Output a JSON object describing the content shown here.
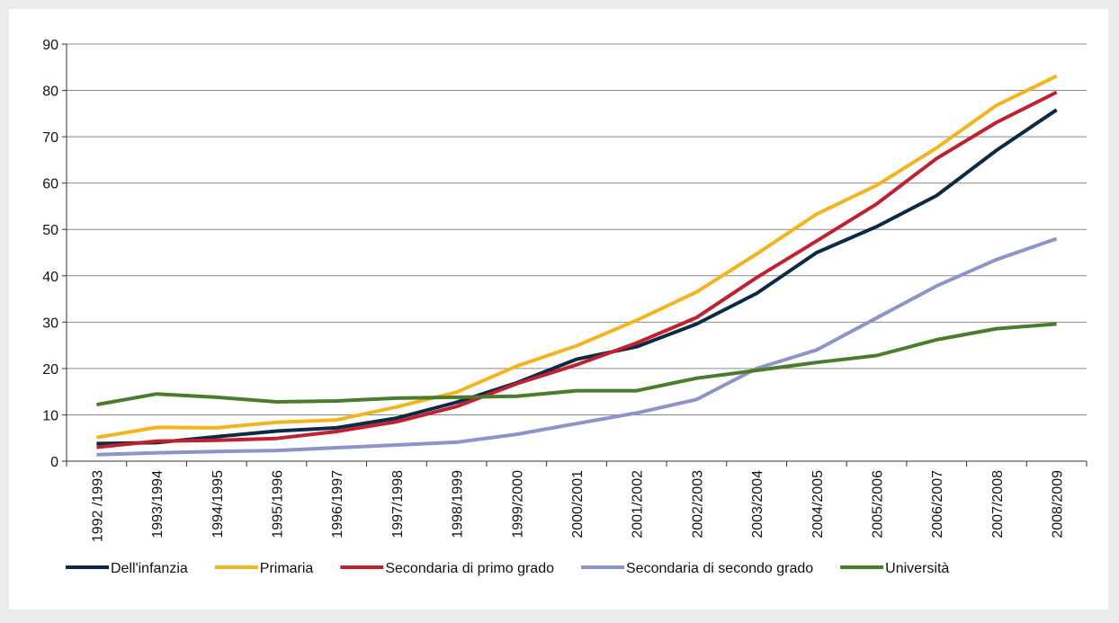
{
  "chart_data": {
    "type": "line",
    "title": "",
    "xlabel": "",
    "ylabel": "",
    "ylim": [
      0,
      90
    ],
    "y_ticks": [
      0,
      10,
      20,
      30,
      40,
      50,
      60,
      70,
      80,
      90
    ],
    "grid": "horizontal",
    "legend_position": "bottom",
    "categories": [
      "1992 /1993",
      "1993/1994",
      "1994/1995",
      "1995/1996",
      "1996/1997",
      "1997/1998",
      "1998/1999",
      "1999/2000",
      "2000/2001",
      "2001/2002",
      "2002/2003",
      "2003/2004",
      "2004/2005",
      "2005/2006",
      "2006/2007",
      "2007/2008",
      "2008/2009"
    ],
    "series": [
      {
        "name": "Dell'infanzia",
        "color": "#0d2a45",
        "values": [
          3.8,
          4.0,
          5.3,
          6.5,
          7.2,
          9.3,
          12.7,
          16.9,
          22.0,
          24.7,
          29.6,
          36.2,
          45.0,
          50.6,
          57.3,
          67.1,
          75.8
        ]
      },
      {
        "name": "Primaria",
        "color": "#f2b421",
        "values": [
          5.1,
          7.3,
          7.2,
          8.4,
          8.9,
          11.7,
          14.9,
          20.5,
          24.9,
          30.4,
          36.5,
          44.7,
          53.3,
          59.5,
          67.6,
          76.8,
          83.1
        ]
      },
      {
        "name": "Secondaria di primo grado",
        "color": "#c1202e",
        "values": [
          3.0,
          4.3,
          4.5,
          4.9,
          6.4,
          8.5,
          11.8,
          16.7,
          20.8,
          25.5,
          31.0,
          39.6,
          47.5,
          55.5,
          65.3,
          73.1,
          79.6
        ]
      },
      {
        "name": "Secondaria di secondo grado",
        "color": "#8e93c9",
        "values": [
          1.4,
          1.8,
          2.1,
          2.3,
          2.9,
          3.5,
          4.1,
          5.8,
          8.1,
          10.4,
          13.3,
          20.0,
          24.0,
          30.9,
          37.8,
          43.5,
          48.0
        ]
      },
      {
        "name": "Università",
        "color": "#4a7c2c",
        "values": [
          12.2,
          14.5,
          13.8,
          12.8,
          13.0,
          13.6,
          13.8,
          14.0,
          15.2,
          15.2,
          17.9,
          19.6,
          21.3,
          22.8,
          26.2,
          28.6,
          29.6
        ]
      }
    ]
  }
}
